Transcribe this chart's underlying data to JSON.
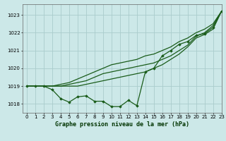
{
  "background_color": "#cce8e8",
  "grid_color": "#aacccc",
  "line_color": "#1a5c1a",
  "marker_color": "#1a5c1a",
  "xlabel": "Graphe pression niveau de la mer (hPa)",
  "xlim": [
    -0.5,
    23
  ],
  "ylim": [
    1017.5,
    1023.6
  ],
  "yticks": [
    1018,
    1019,
    1020,
    1021,
    1022,
    1023
  ],
  "xticks": [
    0,
    1,
    2,
    3,
    4,
    5,
    6,
    7,
    8,
    9,
    10,
    11,
    12,
    13,
    14,
    15,
    16,
    17,
    18,
    19,
    20,
    21,
    22,
    23
  ],
  "series": [
    {
      "x": [
        0,
        1,
        2,
        3,
        4,
        5,
        6,
        7,
        8,
        9,
        10,
        11,
        12,
        13,
        14,
        15,
        16,
        17,
        18,
        19,
        20,
        21,
        22,
        23
      ],
      "y": [
        1019.0,
        1019.0,
        1019.0,
        1019.0,
        1019.1,
        1019.2,
        1019.4,
        1019.6,
        1019.8,
        1020.0,
        1020.2,
        1020.3,
        1020.4,
        1020.5,
        1020.7,
        1020.8,
        1021.0,
        1021.2,
        1021.5,
        1021.7,
        1022.0,
        1022.2,
        1022.5,
        1023.2
      ],
      "has_markers": false,
      "lw": 0.9
    },
    {
      "x": [
        0,
        1,
        2,
        3,
        4,
        5,
        6,
        7,
        8,
        9,
        10,
        11,
        12,
        13,
        14,
        15,
        16,
        17,
        18,
        19,
        20,
        21,
        22,
        23
      ],
      "y": [
        1019.0,
        1019.0,
        1019.0,
        1019.0,
        1019.0,
        1019.1,
        1019.2,
        1019.3,
        1019.5,
        1019.7,
        1019.8,
        1019.9,
        1020.0,
        1020.1,
        1020.2,
        1020.3,
        1020.5,
        1020.7,
        1021.0,
        1021.3,
        1021.8,
        1022.0,
        1022.4,
        1023.2
      ],
      "has_markers": false,
      "lw": 0.9
    },
    {
      "x": [
        0,
        1,
        2,
        3,
        4,
        5,
        6,
        7,
        8,
        9,
        10,
        11,
        12,
        13,
        14,
        15,
        16,
        17,
        18,
        19,
        20,
        21,
        22,
        23
      ],
      "y": [
        1019.0,
        1019.0,
        1019.0,
        1019.0,
        1019.0,
        1019.0,
        1019.0,
        1019.1,
        1019.2,
        1019.3,
        1019.4,
        1019.5,
        1019.6,
        1019.7,
        1019.8,
        1020.0,
        1020.2,
        1020.5,
        1020.8,
        1021.2,
        1021.7,
        1021.9,
        1022.2,
        1023.2
      ],
      "has_markers": false,
      "lw": 0.9
    },
    {
      "x": [
        0,
        1,
        2,
        3,
        4,
        5,
        6,
        7,
        8,
        9,
        10,
        11,
        12,
        13,
        14,
        15,
        16,
        17,
        18,
        19,
        20,
        21,
        22,
        23
      ],
      "y": [
        1019.0,
        1019.0,
        1019.0,
        1018.8,
        1018.3,
        1018.1,
        1018.4,
        1018.45,
        1018.15,
        1018.15,
        1017.85,
        1017.85,
        1018.2,
        1017.9,
        1019.8,
        1020.0,
        1020.7,
        1021.0,
        1021.35,
        1021.5,
        1021.85,
        1021.95,
        1022.3,
        1023.2
      ],
      "has_markers": true,
      "lw": 0.9
    }
  ]
}
